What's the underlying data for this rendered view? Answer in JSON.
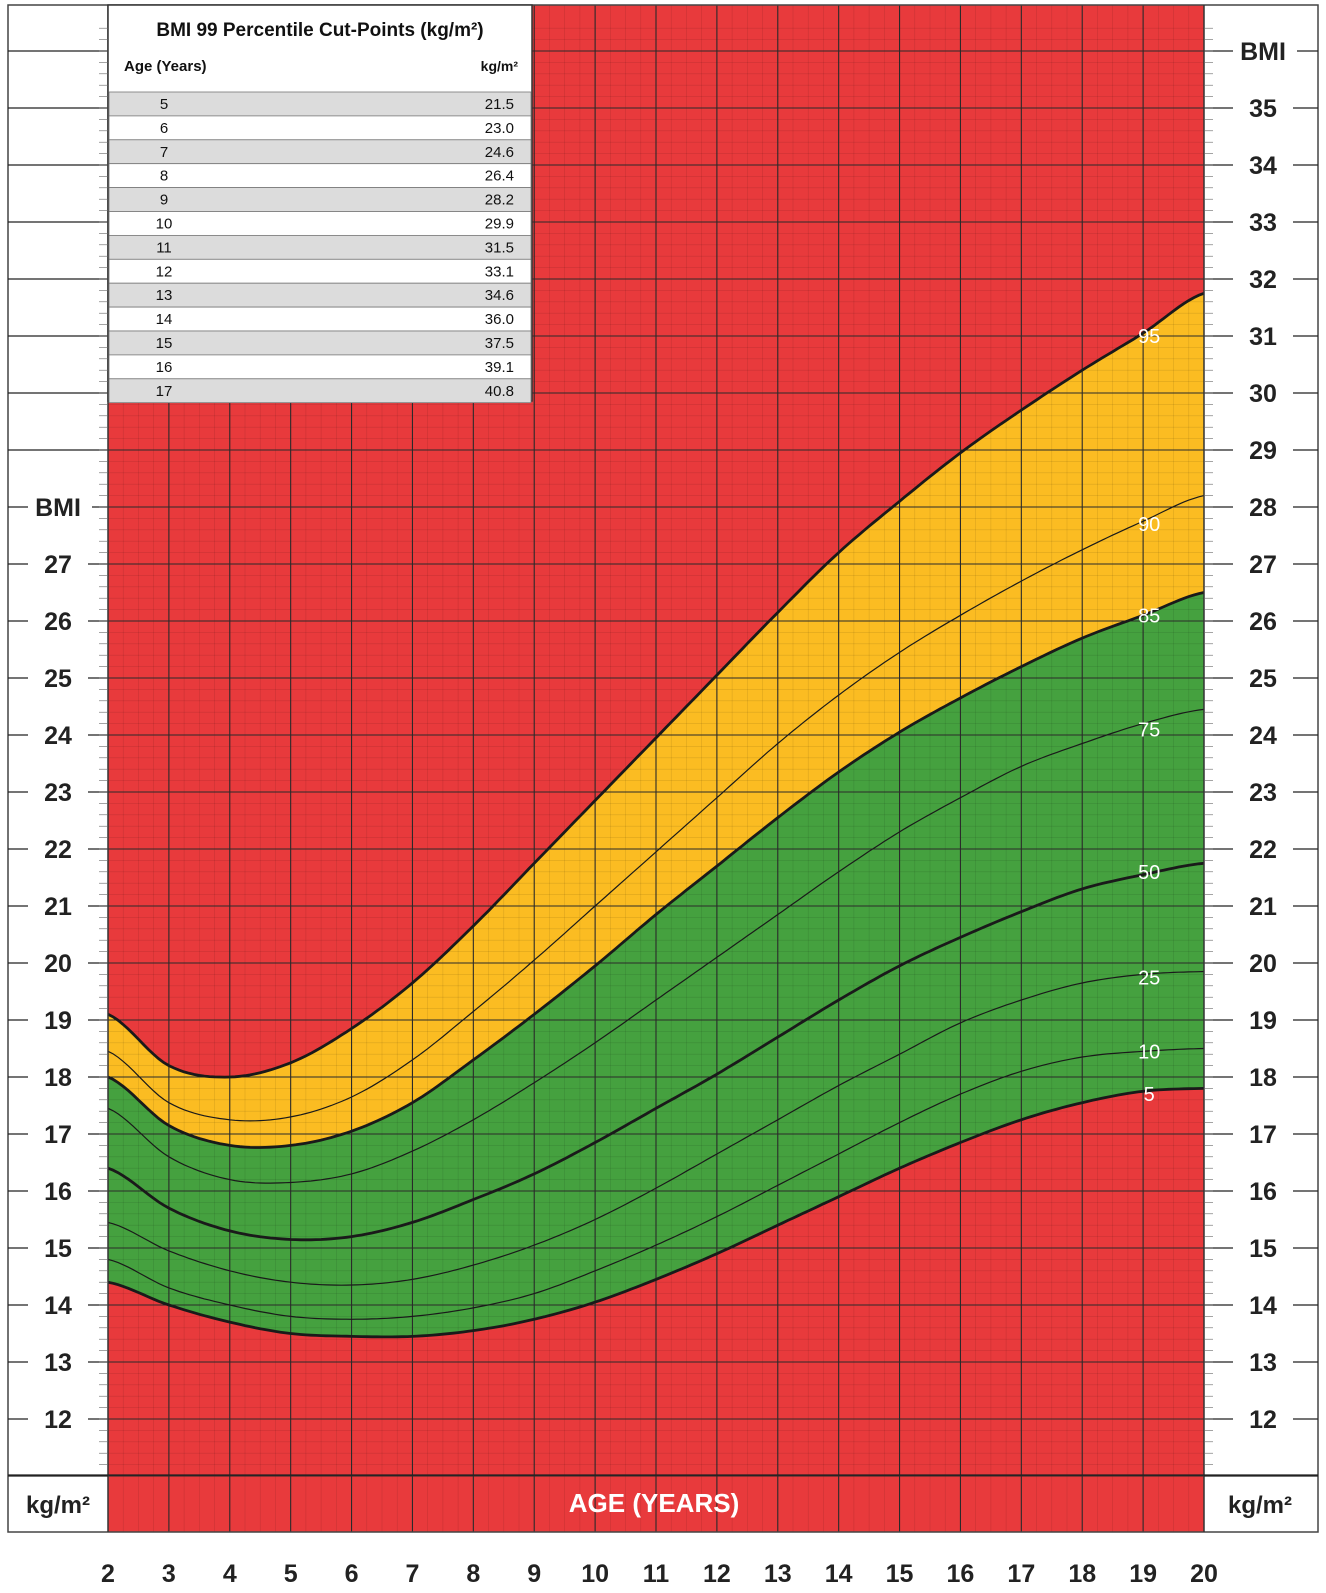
{
  "chart_data": {
    "type": "line",
    "xlabel": "AGE (YEARS)",
    "ylabel": "BMI",
    "unit_label": "kg/m²",
    "x_ticks": [
      2,
      3,
      4,
      5,
      6,
      7,
      8,
      9,
      10,
      11,
      12,
      13,
      14,
      15,
      16,
      17,
      18,
      19,
      20
    ],
    "x_tick_labels": [
      "2",
      "3",
      "4",
      "5",
      "6",
      "7",
      "8",
      "9",
      "10",
      "11",
      "12",
      "13",
      "14",
      "15",
      "16",
      "17",
      "18",
      "19",
      "20"
    ],
    "left_y_ticks": [
      12,
      13,
      14,
      15,
      16,
      17,
      18,
      19,
      20,
      21,
      22,
      23,
      24,
      25,
      26,
      27
    ],
    "left_y_tick_labels": [
      "12",
      "13",
      "14",
      "15",
      "16",
      "17",
      "18",
      "19",
      "20",
      "21",
      "22",
      "23",
      "24",
      "25",
      "26",
      "27"
    ],
    "right_y_ticks": [
      12,
      13,
      14,
      15,
      16,
      17,
      18,
      19,
      20,
      21,
      22,
      23,
      24,
      25,
      26,
      27,
      28,
      29,
      30,
      31,
      32,
      33,
      34,
      35
    ],
    "right_y_tick_labels": [
      "12",
      "13",
      "14",
      "15",
      "16",
      "17",
      "18",
      "19",
      "20",
      "21",
      "22",
      "23",
      "24",
      "25",
      "26",
      "27",
      "28",
      "29",
      "30",
      "31",
      "32",
      "33",
      "34",
      "35"
    ],
    "xlim": [
      2,
      20
    ],
    "ylim": [
      11,
      36.5
    ],
    "grid": true,
    "zone_colors": {
      "obese": "#e83a3c",
      "overweight": "#fbbc22",
      "healthy": "#45a13f",
      "underweight": "#e83a3c"
    },
    "line_color": "#1a1a1a",
    "x": [
      2,
      3,
      4,
      5,
      6,
      7,
      8,
      9,
      10,
      11,
      12,
      13,
      14,
      15,
      16,
      17,
      18,
      19,
      20
    ],
    "series": [
      {
        "name": "5",
        "values": [
          14.4,
          14.0,
          13.7,
          13.5,
          13.45,
          13.45,
          13.55,
          13.75,
          14.05,
          14.45,
          14.9,
          15.4,
          15.9,
          16.4,
          16.85,
          17.25,
          17.55,
          17.75,
          17.8
        ]
      },
      {
        "name": "10",
        "values": [
          14.8,
          14.3,
          14.0,
          13.8,
          13.75,
          13.8,
          13.95,
          14.2,
          14.6,
          15.05,
          15.55,
          16.1,
          16.65,
          17.2,
          17.7,
          18.1,
          18.35,
          18.45,
          18.5
        ]
      },
      {
        "name": "25",
        "values": [
          15.45,
          14.95,
          14.6,
          14.4,
          14.35,
          14.45,
          14.7,
          15.05,
          15.5,
          16.05,
          16.65,
          17.25,
          17.85,
          18.4,
          18.95,
          19.35,
          19.65,
          19.8,
          19.85
        ]
      },
      {
        "name": "50",
        "values": [
          16.4,
          15.7,
          15.3,
          15.15,
          15.2,
          15.45,
          15.85,
          16.3,
          16.85,
          17.45,
          18.05,
          18.7,
          19.35,
          19.95,
          20.45,
          20.9,
          21.3,
          21.55,
          21.75
        ]
      },
      {
        "name": "75",
        "values": [
          17.45,
          16.6,
          16.2,
          16.15,
          16.3,
          16.7,
          17.25,
          17.9,
          18.6,
          19.35,
          20.1,
          20.85,
          21.6,
          22.3,
          22.9,
          23.45,
          23.85,
          24.2,
          24.45
        ]
      },
      {
        "name": "85",
        "values": [
          18.0,
          17.15,
          16.8,
          16.8,
          17.05,
          17.55,
          18.3,
          19.1,
          19.95,
          20.85,
          21.7,
          22.55,
          23.35,
          24.05,
          24.65,
          25.2,
          25.7,
          26.1,
          26.5
        ]
      },
      {
        "name": "90",
        "values": [
          18.45,
          17.55,
          17.25,
          17.3,
          17.65,
          18.3,
          19.15,
          20.05,
          21.0,
          21.95,
          22.9,
          23.85,
          24.7,
          25.45,
          26.1,
          26.7,
          27.25,
          27.75,
          28.2
        ]
      },
      {
        "name": "95",
        "values": [
          19.1,
          18.2,
          18.0,
          18.25,
          18.85,
          19.65,
          20.65,
          21.75,
          22.85,
          23.95,
          25.05,
          26.15,
          27.2,
          28.1,
          28.95,
          29.7,
          30.4,
          31.05,
          31.75
        ]
      }
    ],
    "cutpoint_table": {
      "title": "BMI 99 Percentile Cut-Points (kg/m²)",
      "col_age": "Age (Years)",
      "col_value": "kg/m²",
      "rows": [
        {
          "age": "5",
          "value": "21.5"
        },
        {
          "age": "6",
          "value": "23.0"
        },
        {
          "age": "7",
          "value": "24.6"
        },
        {
          "age": "8",
          "value": "26.4"
        },
        {
          "age": "9",
          "value": "28.2"
        },
        {
          "age": "10",
          "value": "29.9"
        },
        {
          "age": "11",
          "value": "31.5"
        },
        {
          "age": "12",
          "value": "33.1"
        },
        {
          "age": "13",
          "value": "34.6"
        },
        {
          "age": "14",
          "value": "36.0"
        },
        {
          "age": "15",
          "value": "37.5"
        },
        {
          "age": "16",
          "value": "39.1"
        },
        {
          "age": "17",
          "value": "40.8"
        }
      ]
    }
  }
}
